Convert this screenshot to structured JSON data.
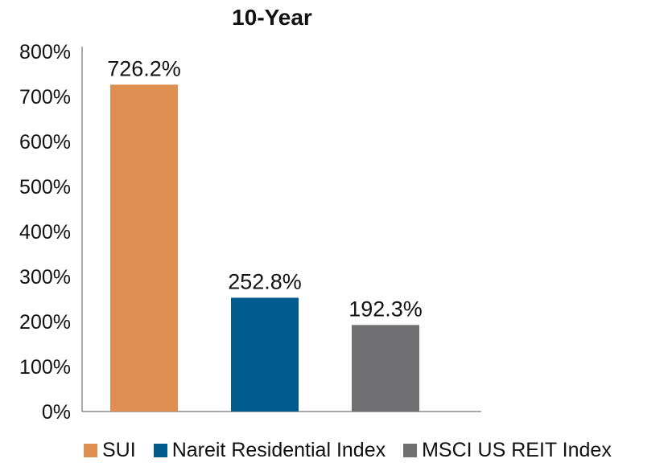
{
  "chart_data": {
    "type": "bar",
    "title": "10-Year",
    "categories": [
      "SUI",
      "Nareit Residential Index",
      "MSCI US REIT Index"
    ],
    "values": [
      726.2,
      252.8,
      192.3
    ],
    "data_labels": [
      "726.2%",
      "252.8%",
      "192.3%"
    ],
    "colors": [
      "#DE8E51",
      "#015B8E",
      "#707072"
    ],
    "yticks": [
      "0%",
      "100%",
      "200%",
      "300%",
      "400%",
      "500%",
      "600%",
      "700%",
      "800%"
    ],
    "ylim": [
      0,
      800
    ],
    "grid": false,
    "legend_position": "bottom"
  }
}
